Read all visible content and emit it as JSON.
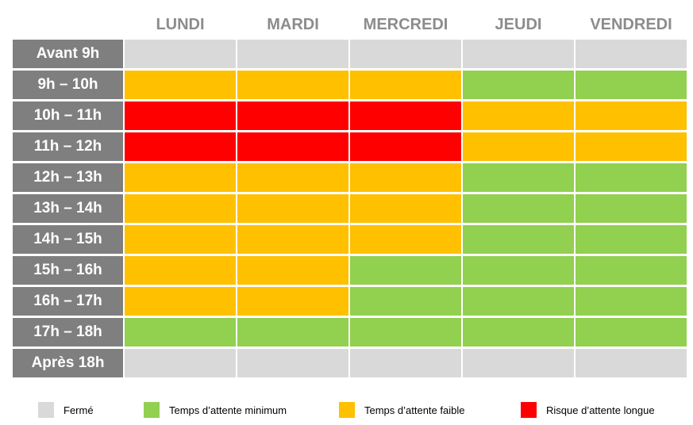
{
  "colors": {
    "ferme": "#d9d9d9",
    "minimum": "#92d050",
    "faible": "#ffc000",
    "longue": "#ff0000",
    "header_text": "#8c8c8c",
    "row_label_bg": "#7f7f7f"
  },
  "chart_data": {
    "type": "heatmap",
    "columns": [
      "LUNDI",
      "MARDI",
      "MERCREDI",
      "JEUDI",
      "VENDREDI"
    ],
    "rows": [
      "Avant 9h",
      "9h – 10h",
      "10h – 11h",
      "11h – 12h",
      "12h – 13h",
      "13h – 14h",
      "14h – 15h",
      "15h – 16h",
      "16h – 17h",
      "17h – 18h",
      "Après 18h"
    ],
    "values": [
      [
        "ferme",
        "ferme",
        "ferme",
        "ferme",
        "ferme"
      ],
      [
        "faible",
        "faible",
        "faible",
        "minimum",
        "minimum"
      ],
      [
        "longue",
        "longue",
        "longue",
        "faible",
        "faible"
      ],
      [
        "longue",
        "longue",
        "longue",
        "faible",
        "faible"
      ],
      [
        "faible",
        "faible",
        "faible",
        "minimum",
        "minimum"
      ],
      [
        "faible",
        "faible",
        "faible",
        "minimum",
        "minimum"
      ],
      [
        "faible",
        "faible",
        "faible",
        "minimum",
        "minimum"
      ],
      [
        "faible",
        "faible",
        "minimum",
        "minimum",
        "minimum"
      ],
      [
        "faible",
        "faible",
        "minimum",
        "minimum",
        "minimum"
      ],
      [
        "minimum",
        "minimum",
        "minimum",
        "minimum",
        "minimum"
      ],
      [
        "ferme",
        "ferme",
        "ferme",
        "ferme",
        "ferme"
      ]
    ],
    "legend": [
      {
        "key": "ferme",
        "label": "Fermé"
      },
      {
        "key": "minimum",
        "label": "Temps d’attente minimum"
      },
      {
        "key": "faible",
        "label": "Temps d’attente faible"
      },
      {
        "key": "longue",
        "label": "Risque d’attente longue"
      }
    ]
  }
}
